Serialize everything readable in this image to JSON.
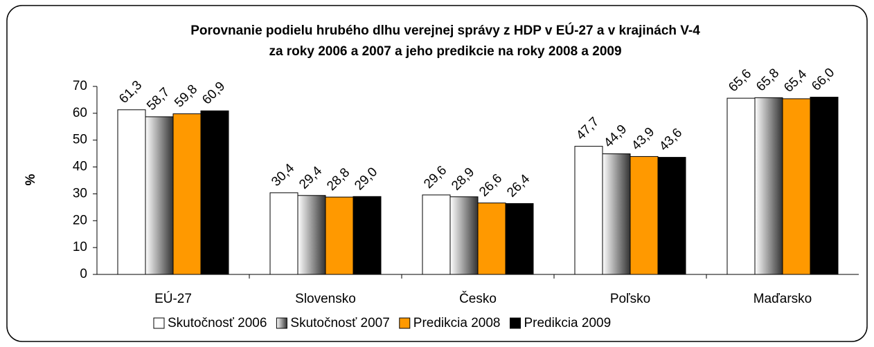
{
  "chart_data": {
    "type": "bar",
    "title": "Porovnanie podielu hrubého dlhu verejnej správy z HDP v EÚ-27 a v krajinách V-4",
    "subtitle": "za roky 2006 a 2007 a jeho predikcie na roky 2008 a 2009",
    "ylabel": "%",
    "categories": [
      "EÚ-27",
      "Slovensko",
      "Česko",
      "Poľsko",
      "Maďarsko"
    ],
    "series": [
      {
        "name": "Skutočnosť 2006",
        "color": "#ffffff",
        "values": [
          61.3,
          30.4,
          29.6,
          47.7,
          65.6
        ],
        "value_labels": [
          "61,3",
          "30,4",
          "29,6",
          "47,7",
          "65,6"
        ]
      },
      {
        "name": "Skutočnosť 2007",
        "color": "#9a9a9a",
        "values": [
          58.7,
          29.4,
          28.9,
          44.9,
          65.8
        ],
        "value_labels": [
          "58,7",
          "29,4",
          "28,9",
          "44,9",
          "65,8"
        ]
      },
      {
        "name": "Predikcia 2008",
        "color": "#ff9900",
        "values": [
          59.8,
          28.8,
          26.6,
          43.9,
          65.4
        ],
        "value_labels": [
          "59,8",
          "28,8",
          "26,6",
          "43,9",
          "65,4"
        ]
      },
      {
        "name": "Predikcia 2009",
        "color": "#000000",
        "values": [
          60.9,
          29.0,
          26.4,
          43.6,
          66.0
        ],
        "value_labels": [
          "60,9",
          "29,0",
          "26,4",
          "43,6",
          "66,0"
        ]
      }
    ],
    "ylim": [
      0,
      70
    ],
    "yticks": [
      0,
      10,
      20,
      30,
      40,
      50,
      60,
      70
    ],
    "grid": false,
    "legend": "bottom"
  }
}
